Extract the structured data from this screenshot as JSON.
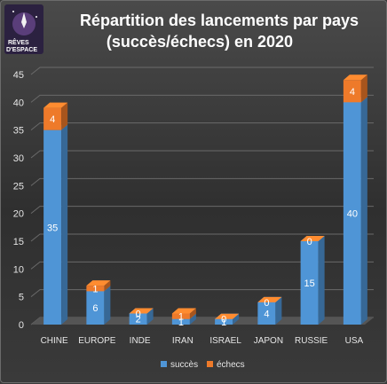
{
  "logo": {
    "line1": "RÊVES",
    "line2": "D'ESPACE"
  },
  "chart_data": {
    "type": "bar",
    "stacked": true,
    "title": "Répartition des lancements par pays",
    "subtitle": "(succès/échecs) en 2020",
    "categories": [
      "CHINE",
      "EUROPE",
      "INDE",
      "IRAN",
      "ISRAEL",
      "JAPON",
      "RUSSIE",
      "USA"
    ],
    "series": [
      {
        "name": "succès",
        "values": [
          35,
          6,
          2,
          1,
          1,
          4,
          15,
          40
        ],
        "color": "#4f95d6"
      },
      {
        "name": "échecs",
        "values": [
          4,
          1,
          0,
          1,
          0,
          0,
          0,
          4
        ],
        "color": "#ee7a2a"
      }
    ],
    "ylim": [
      0,
      45
    ],
    "yticks": [
      0,
      5,
      10,
      15,
      20,
      25,
      30,
      35,
      40,
      45
    ],
    "grid": true,
    "legend": "bottom"
  }
}
